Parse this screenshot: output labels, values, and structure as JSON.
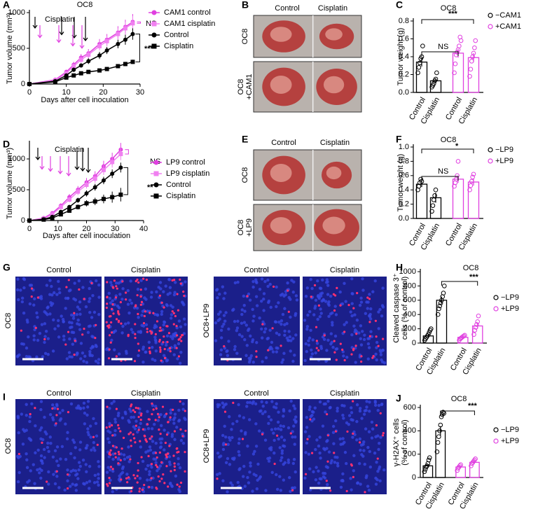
{
  "chart_data": [
    {
      "type": "line",
      "panel": "A",
      "title": "OC8",
      "xlabel": "Days after cell inoculation",
      "ylabel": "Tumor volume (mm³)",
      "x": [
        0,
        7,
        10,
        12,
        14,
        16,
        19,
        21,
        24,
        26,
        28
      ],
      "xlim": [
        0,
        30
      ],
      "xticks": [
        0,
        10,
        20,
        30
      ],
      "ylim": [
        0,
        1000
      ],
      "yticks": [
        0,
        500,
        1000
      ],
      "series": [
        {
          "name": "CAM1 control",
          "color": "#e040e0",
          "marker": "circle",
          "values": [
            0,
            60,
            170,
            270,
            370,
            430,
            560,
            620,
            720,
            800,
            870
          ],
          "errors": [
            0,
            10,
            30,
            40,
            50,
            60,
            70,
            80,
            90,
            100,
            110
          ]
        },
        {
          "name": "CAM1 cisplatin",
          "color": "#f080f0",
          "marker": "square",
          "values": [
            0,
            50,
            150,
            250,
            340,
            410,
            530,
            600,
            700,
            780,
            850
          ],
          "errors": [
            0,
            10,
            25,
            35,
            45,
            55,
            60,
            70,
            80,
            90,
            100
          ]
        },
        {
          "name": "Control",
          "color": "#000000",
          "marker": "circle",
          "values": [
            0,
            40,
            120,
            200,
            260,
            320,
            400,
            470,
            560,
            620,
            700
          ],
          "errors": [
            0,
            8,
            20,
            30,
            30,
            40,
            50,
            50,
            60,
            70,
            80
          ]
        },
        {
          "name": "Cisplatin",
          "color": "#000000",
          "marker": "square",
          "values": [
            0,
            30,
            90,
            120,
            150,
            170,
            190,
            210,
            250,
            280,
            310
          ],
          "errors": [
            0,
            5,
            15,
            15,
            20,
            20,
            20,
            25,
            25,
            30,
            30
          ]
        }
      ],
      "annotations": [
        {
          "text": "Cisplatin",
          "color": "#000000"
        },
        {
          "text": "NS",
          "color": "#e040e0"
        },
        {
          "text": "***",
          "color": "#000000"
        }
      ]
    },
    {
      "type": "bar",
      "panel": "C",
      "title": "OC8",
      "ylabel": "Tumor weight (g)",
      "categories": [
        "Control",
        "Cisplatin",
        "Control",
        "Cisplatin"
      ],
      "ylim": [
        0,
        0.8
      ],
      "yticks": [
        {
          "value": 0,
          "label": "0.0"
        },
        0.2,
        0.4,
        0.6,
        0.8
      ],
      "series": [
        {
          "name": "−CAM1",
          "color": "#000000",
          "values": [
            0.34,
            0.13,
            null,
            null
          ],
          "errors": [
            0.05,
            0.03,
            null,
            null
          ],
          "points": [
            [
              0.22,
              0.28,
              0.33,
              0.38,
              0.4,
              0.52
            ],
            [
              0.06,
              0.08,
              0.1,
              0.13,
              0.15,
              0.22
            ],
            [],
            []
          ]
        },
        {
          "name": "+CAM1",
          "color": "#e040e0",
          "values": [
            null,
            null,
            0.44,
            0.39
          ],
          "errors": [
            null,
            null,
            0.05,
            0.05
          ],
          "points": [
            [],
            [],
            [
              0.22,
              0.32,
              0.42,
              0.45,
              0.48,
              0.52,
              0.62,
              0.58
            ],
            [
              0.18,
              0.26,
              0.35,
              0.4,
              0.44,
              0.5,
              0.58
            ]
          ]
        }
      ],
      "annotations": [
        {
          "text": "NS",
          "color": "#000000"
        },
        {
          "text": "***",
          "color": "#000000"
        }
      ]
    },
    {
      "type": "line",
      "panel": "D",
      "xlabel": "Days after cell inoculation",
      "ylabel": "Tumor volume (mm³)",
      "x": [
        0,
        5,
        8,
        11,
        14,
        17,
        20,
        23,
        26,
        29,
        32
      ],
      "xlim": [
        0,
        40
      ],
      "xticks": [
        0,
        10,
        20,
        30,
        40
      ],
      "ylim": [
        0,
        1250
      ],
      "yticks": [
        0,
        500,
        1000
      ],
      "series": [
        {
          "name": "LP9 control",
          "color": "#e040e0",
          "marker": "circle",
          "values": [
            0,
            40,
            120,
            240,
            380,
            500,
            620,
            720,
            880,
            1000,
            1150
          ],
          "errors": [
            0,
            10,
            25,
            40,
            50,
            60,
            70,
            80,
            90,
            100,
            110
          ]
        },
        {
          "name": "LP9 cisplatin",
          "color": "#f080f0",
          "marker": "square",
          "values": [
            0,
            30,
            100,
            220,
            340,
            470,
            580,
            680,
            820,
            950,
            1080
          ],
          "errors": [
            0,
            10,
            20,
            35,
            45,
            55,
            60,
            70,
            80,
            90,
            100
          ]
        },
        {
          "name": "Control",
          "color": "#000000",
          "marker": "circle",
          "values": [
            0,
            20,
            60,
            140,
            220,
            330,
            440,
            540,
            650,
            760,
            860
          ],
          "errors": [
            0,
            5,
            15,
            25,
            30,
            40,
            50,
            55,
            60,
            70,
            80
          ]
        },
        {
          "name": "Cisplatin",
          "color": "#000000",
          "marker": "square",
          "values": [
            0,
            15,
            40,
            100,
            160,
            220,
            280,
            310,
            350,
            380,
            420
          ],
          "errors": [
            0,
            5,
            10,
            20,
            30,
            40,
            50,
            60,
            70,
            90,
            110
          ]
        }
      ],
      "annotations": [
        {
          "text": "Cisplatin",
          "color": "#000000"
        },
        {
          "text": "NS",
          "color": "#e040e0"
        },
        {
          "text": "**",
          "color": "#000000"
        }
      ]
    },
    {
      "type": "bar",
      "panel": "F",
      "title": "OC8",
      "ylabel": "Tumor weight (g)",
      "categories": [
        "Control",
        "Cisplatin",
        "Control",
        "Cisplatin"
      ],
      "ylim": [
        0,
        1.0
      ],
      "yticks": [
        {
          "value": 0,
          "label": "0.0"
        },
        0.2,
        0.4,
        0.6,
        0.8,
        {
          "value": 1.0,
          "label": "1.0"
        }
      ],
      "series": [
        {
          "name": "−LP9",
          "color": "#000000",
          "values": [
            0.48,
            0.29,
            null,
            null
          ],
          "errors": [
            0.04,
            0.07,
            null,
            null
          ],
          "points": [
            [
              0.4,
              0.45,
              0.5,
              0.55,
              0.52
            ],
            [
              0.1,
              0.18,
              0.26,
              0.32,
              0.4
            ],
            [],
            []
          ]
        },
        {
          "name": "+LP9",
          "color": "#e040e0",
          "values": [
            null,
            null,
            0.55,
            0.51
          ],
          "errors": [
            null,
            null,
            0.05,
            0.05
          ],
          "points": [
            [],
            [],
            [
              0.45,
              0.5,
              0.55,
              0.6,
              0.8
            ],
            [
              0.4,
              0.46,
              0.52,
              0.58,
              0.62
            ]
          ]
        }
      ],
      "annotations": [
        {
          "text": "NS",
          "color": "#000000"
        },
        {
          "text": "*",
          "color": "#000000"
        }
      ]
    },
    {
      "type": "bar",
      "panel": "H",
      "title": "OC8",
      "ylabel": [
        "Cleaved caspase 3⁺",
        "cells (% of control)"
      ],
      "categories": [
        "Control",
        "Cisplatin",
        "Control",
        "Cisplatin"
      ],
      "ylim": [
        0,
        1000
      ],
      "yticks": [
        0,
        200,
        400,
        600,
        800,
        1000
      ],
      "series": [
        {
          "name": "−LP9",
          "color": "#000000",
          "values": [
            100,
            600,
            null,
            null
          ],
          "errors": [
            20,
            50,
            null,
            null
          ],
          "points": [
            [
              40,
              60,
              80,
              100,
              120,
              150,
              180,
              200
            ],
            [
              400,
              480,
              520,
              560,
              600,
              650,
              700,
              800
            ],
            [],
            []
          ]
        },
        {
          "name": "+LP9",
          "color": "#e040e0",
          "values": [
            null,
            null,
            80,
            240
          ],
          "errors": [
            null,
            null,
            15,
            40
          ],
          "points": [
            [],
            [],
            [
              40,
              60,
              70,
              80,
              90,
              100,
              110
            ],
            [
              120,
              180,
              220,
              260,
              300,
              380
            ]
          ]
        }
      ],
      "annotations": [
        {
          "text": "***",
          "color": "#000000"
        }
      ]
    },
    {
      "type": "bar",
      "panel": "J",
      "title": "OC8",
      "ylabel": [
        "γ-H2AX⁺ cells",
        "(% of control)"
      ],
      "categories": [
        "Control",
        "Cisplatin",
        "Control",
        "Cisplatin"
      ],
      "ylim": [
        0,
        600
      ],
      "yticks": [
        0,
        200,
        400,
        600
      ],
      "series": [
        {
          "name": "−LP9",
          "color": "#000000",
          "values": [
            100,
            400,
            null,
            null
          ],
          "errors": [
            15,
            40,
            null,
            null
          ],
          "points": [
            [
              50,
              70,
              90,
              100,
              120,
              150,
              170
            ],
            [
              220,
              300,
              350,
              400,
              450,
              520,
              540,
              560,
              550
            ],
            [],
            []
          ]
        },
        {
          "name": "+LP9",
          "color": "#e040e0",
          "values": [
            null,
            null,
            90,
            130
          ],
          "errors": [
            null,
            null,
            10,
            12
          ],
          "points": [
            [],
            [],
            [
              60,
              80,
              90,
              100,
              110
            ],
            [
              100,
              120,
              130,
              140,
              150,
              160
            ]
          ]
        }
      ],
      "annotations": [
        {
          "text": "***",
          "color": "#000000"
        }
      ]
    }
  ],
  "panels": [
    {
      "letter": "B",
      "columns": [
        "Control",
        "Cisplatin"
      ],
      "rows": [
        [
          "OC8"
        ],
        [
          "OC8",
          "+CAM1"
        ]
      ]
    },
    {
      "letter": "E",
      "columns": [
        "Control",
        "Cisplatin"
      ],
      "rows": [
        [
          "OC8"
        ],
        [
          "OC8",
          "+LP9"
        ]
      ]
    },
    {
      "letter": "G",
      "columns": [
        "Control",
        "Cisplatin",
        "Control",
        "Cisplatin"
      ],
      "rows": [
        [
          "OC8"
        ],
        [
          "OC8+LP9"
        ]
      ]
    },
    {
      "letter": "I",
      "columns": [
        "Control",
        "Cisplatin",
        "Control",
        "Cisplatin"
      ],
      "rows": [
        [
          "OC8"
        ],
        [
          "OC8+LP9"
        ]
      ]
    }
  ]
}
